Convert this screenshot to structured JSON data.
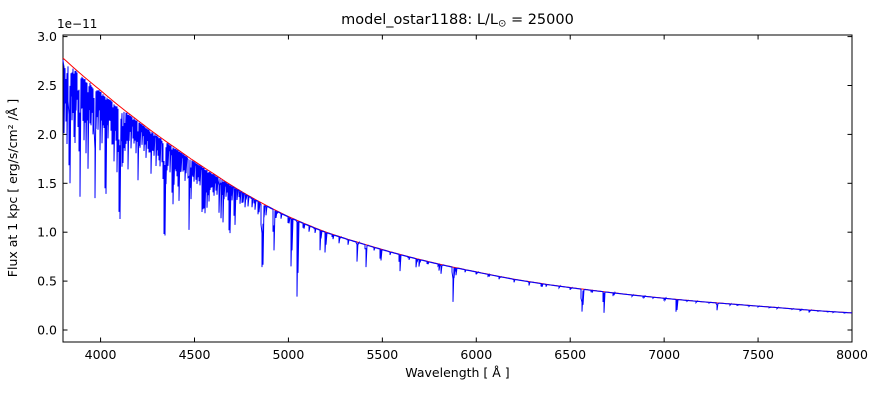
{
  "chart_data": {
    "type": "line",
    "title": "model_ostar1188: L/L⊙ = 25000",
    "title_parts": {
      "prefix": "model_ostar1188: L/L",
      "odot": "⊙",
      "suffix": " = 25000"
    },
    "xlabel": "Wavelength [ Å ]",
    "ylabel": "Flux at 1 kpc [ erg/s/cm² /Å ]",
    "y_offset_label": "1e−11",
    "xlim": [
      3800,
      8000
    ],
    "ylim_1e11": [
      -0.12,
      3.02
    ],
    "x_tick_labels": [
      "4000",
      "4500",
      "5000",
      "5500",
      "6000",
      "6500",
      "7000",
      "7500",
      "8000"
    ],
    "y_tick_labels": [
      "0.0",
      "0.5",
      "1.0",
      "1.5",
      "2.0",
      "2.5",
      "3.0"
    ],
    "grid": false,
    "legend": "none",
    "flux_unit": "1e-11 erg/s/cm2/A",
    "series": [
      {
        "name": "continuum",
        "color": "#ff0000",
        "anchors_wavelength": [
          3800,
          4000,
          4200,
          4400,
          4600,
          4800,
          5000,
          5200,
          5400,
          5600,
          5800,
          6000,
          6200,
          6400,
          6600,
          6800,
          7000,
          7200,
          7400,
          7600,
          7800,
          8000
        ],
        "anchors_flux_1e11": [
          2.78,
          2.45,
          2.14,
          1.86,
          1.6,
          1.36,
          1.16,
          1.0,
          0.88,
          0.77,
          0.675,
          0.595,
          0.52,
          0.46,
          0.41,
          0.365,
          0.325,
          0.29,
          0.26,
          0.23,
          0.2,
          0.175
        ]
      },
      {
        "name": "spectrum",
        "color": "#0000ff",
        "absorption_lines": [
          [
            3805,
            0.28,
            1.5
          ],
          [
            3810,
            0.16,
            1.5
          ],
          [
            3815,
            0.22,
            1.5
          ],
          [
            3819,
            0.32,
            1.5
          ],
          [
            3824,
            0.14,
            1.5
          ],
          [
            3830,
            0.22,
            1.5
          ],
          [
            3835,
            0.45,
            3
          ],
          [
            3843,
            0.12,
            1.5
          ],
          [
            3848,
            0.2,
            1.5
          ],
          [
            3856,
            0.26,
            1.5
          ],
          [
            3862,
            0.28,
            1.5
          ],
          [
            3871,
            0.15,
            1.5
          ],
          [
            3878,
            0.18,
            1.5
          ],
          [
            3882,
            0.22,
            1.5
          ],
          [
            3889,
            0.48,
            3
          ],
          [
            3898,
            0.14,
            1.5
          ],
          [
            3905,
            0.18,
            1.5
          ],
          [
            3912,
            0.25,
            1.5
          ],
          [
            3920,
            0.3,
            1.5
          ],
          [
            3926,
            0.16,
            1.5
          ],
          [
            3933,
            0.35,
            1.8
          ],
          [
            3938,
            0.12,
            1.5
          ],
          [
            3946,
            0.18,
            1.5
          ],
          [
            3952,
            0.12,
            1.5
          ],
          [
            3958,
            0.2,
            1.5
          ],
          [
            3964,
            0.16,
            1.5
          ],
          [
            3970,
            0.46,
            3
          ],
          [
            3979,
            0.12,
            1.5
          ],
          [
            3985,
            0.18,
            1.5
          ],
          [
            3995,
            0.25,
            1.5
          ],
          [
            4003,
            0.12,
            1.5
          ],
          [
            4009,
            0.22,
            1.8
          ],
          [
            4017,
            0.15,
            1.5
          ],
          [
            4026,
            0.42,
            2.5
          ],
          [
            4035,
            0.12,
            1.5
          ],
          [
            4041,
            0.18,
            1.5
          ],
          [
            4048,
            0.1,
            1.5
          ],
          [
            4056,
            0.14,
            1.5
          ],
          [
            4063,
            0.2,
            1.5
          ],
          [
            4069,
            0.26,
            1.8
          ],
          [
            4076,
            0.12,
            1.5
          ],
          [
            4082,
            0.16,
            1.5
          ],
          [
            4089,
            0.3,
            1.8
          ],
          [
            4097,
            0.22,
            1.5
          ],
          [
            4101,
            0.5,
            4
          ],
          [
            4110,
            0.15,
            1.5
          ],
          [
            4116,
            0.26,
            1.8
          ],
          [
            4121,
            0.24,
            1.8
          ],
          [
            4128,
            0.12,
            1.5
          ],
          [
            4132,
            0.18,
            1.5
          ],
          [
            4144,
            0.26,
            1.8
          ],
          [
            4153,
            0.12,
            1.5
          ],
          [
            4163,
            0.15,
            1.5
          ],
          [
            4172,
            0.1,
            1.5
          ],
          [
            4180,
            0.12,
            1.5
          ],
          [
            4187,
            0.16,
            1.5
          ],
          [
            4195,
            0.1,
            1.5
          ],
          [
            4200,
            0.28,
            2
          ],
          [
            4211,
            0.12,
            1.5
          ],
          [
            4222,
            0.1,
            1.5
          ],
          [
            4233,
            0.12,
            1.5
          ],
          [
            4242,
            0.15,
            1.5
          ],
          [
            4250,
            0.1,
            1.5
          ],
          [
            4260,
            0.12,
            1.5
          ],
          [
            4267,
            0.22,
            1.8
          ],
          [
            4276,
            0.1,
            1.5
          ],
          [
            4284,
            0.12,
            1.5
          ],
          [
            4294,
            0.16,
            1.5
          ],
          [
            4303,
            0.1,
            1.5
          ],
          [
            4310,
            0.12,
            1.5
          ],
          [
            4317,
            0.15,
            1.5
          ],
          [
            4326,
            0.12,
            1.5
          ],
          [
            4332,
            0.2,
            1.5
          ],
          [
            4340,
            0.5,
            4
          ],
          [
            4350,
            0.22,
            1.5
          ],
          [
            4360,
            0.12,
            1.5
          ],
          [
            4368,
            0.15,
            1.5
          ],
          [
            4379,
            0.26,
            1.8
          ],
          [
            4387,
            0.32,
            1.8
          ],
          [
            4395,
            0.12,
            1.5
          ],
          [
            4404,
            0.15,
            1.5
          ],
          [
            4415,
            0.28,
            1.8
          ],
          [
            4425,
            0.12,
            1.5
          ],
          [
            4437,
            0.1,
            1.5
          ],
          [
            4447,
            0.15,
            1.5
          ],
          [
            4455,
            0.1,
            1.5
          ],
          [
            4465,
            0.12,
            1.5
          ],
          [
            4471,
            0.42,
            2.5
          ],
          [
            4481,
            0.24,
            1.8
          ],
          [
            4489,
            0.1,
            1.5
          ],
          [
            4498,
            0.12,
            1.5
          ],
          [
            4508,
            0.1,
            1.5
          ],
          [
            4515,
            0.12,
            1.5
          ],
          [
            4522,
            0.1,
            1.5
          ],
          [
            4530,
            0.12,
            1.5
          ],
          [
            4542,
            0.28,
            2
          ],
          [
            4553,
            0.28,
            1.8
          ],
          [
            4560,
            0.15,
            1.5
          ],
          [
            4568,
            0.24,
            1.8
          ],
          [
            4575,
            0.2,
            1.8
          ],
          [
            4583,
            0.12,
            1.5
          ],
          [
            4590,
            0.1,
            1.5
          ],
          [
            4596,
            0.12,
            1.5
          ],
          [
            4605,
            0.14,
            1.5
          ],
          [
            4613,
            0.1,
            1.5
          ],
          [
            4620,
            0.12,
            1.5
          ],
          [
            4630,
            0.24,
            1.8
          ],
          [
            4640,
            0.26,
            1.8
          ],
          [
            4650,
            0.28,
            1.8
          ],
          [
            4658,
            0.12,
            1.5
          ],
          [
            4668,
            0.1,
            1.5
          ],
          [
            4676,
            0.12,
            1.5
          ],
          [
            4686,
            0.34,
            2
          ],
          [
            4697,
            0.1,
            1.5
          ],
          [
            4713,
            0.26,
            1.8
          ],
          [
            4725,
            0.08,
            1.5
          ],
          [
            4740,
            0.1,
            1.5
          ],
          [
            4755,
            0.08,
            1.5
          ],
          [
            4770,
            0.1,
            1.5
          ],
          [
            4785,
            0.08,
            1.5
          ],
          [
            4805,
            0.07,
            1.5
          ],
          [
            4820,
            0.08,
            1.5
          ],
          [
            4840,
            0.1,
            1.5
          ],
          [
            4861,
            0.5,
            5
          ],
          [
            4880,
            0.08,
            1.5
          ],
          [
            4922,
            0.34,
            3
          ],
          [
            4935,
            0.06,
            1.5
          ],
          [
            4960,
            0.05,
            1.5
          ],
          [
            5000,
            0.06,
            1.5
          ],
          [
            5015,
            0.45,
            2
          ],
          [
            5047,
            0.72,
            2
          ],
          [
            5080,
            0.05,
            1.5
          ],
          [
            5110,
            0.06,
            1.5
          ],
          [
            5140,
            0.05,
            1.5
          ],
          [
            5169,
            0.2,
            1.8
          ],
          [
            5196,
            0.22,
            1.8
          ],
          [
            5235,
            0.05,
            1.5
          ],
          [
            5270,
            0.07,
            1.5
          ],
          [
            5316,
            0.06,
            1.5
          ],
          [
            5365,
            0.22,
            1.8
          ],
          [
            5412,
            0.26,
            2
          ],
          [
            5455,
            0.04,
            1.5
          ],
          [
            5490,
            0.14,
            1.8
          ],
          [
            5540,
            0.04,
            1.5
          ],
          [
            5592,
            0.22,
            1.8
          ],
          [
            5640,
            0.04,
            1.5
          ],
          [
            5680,
            0.12,
            1.8
          ],
          [
            5696,
            0.1,
            1.8
          ],
          [
            5740,
            0.04,
            1.5
          ],
          [
            5800,
            0.1,
            1.8
          ],
          [
            5812,
            0.14,
            1.8
          ],
          [
            5876,
            0.55,
            2.5
          ],
          [
            5890,
            0.12,
            1.8
          ],
          [
            5940,
            0.04,
            1.5
          ],
          [
            6000,
            0.04,
            1.5
          ],
          [
            6065,
            0.04,
            1.5
          ],
          [
            6122,
            0.05,
            1.5
          ],
          [
            6200,
            0.06,
            1.8
          ],
          [
            6280,
            0.08,
            1.8
          ],
          [
            6347,
            0.07,
            1.8
          ],
          [
            6371,
            0.05,
            1.8
          ],
          [
            6440,
            0.04,
            1.5
          ],
          [
            6500,
            0.05,
            1.8
          ],
          [
            6563,
            0.55,
            4
          ],
          [
            6614,
            0.06,
            1.8
          ],
          [
            6678,
            0.55,
            2
          ],
          [
            6730,
            0.05,
            1.8
          ],
          [
            6830,
            0.04,
            1.5
          ],
          [
            6890,
            0.04,
            1.5
          ],
          [
            6940,
            0.03,
            1.5
          ],
          [
            7002,
            0.06,
            1.8
          ],
          [
            7065,
            0.4,
            2
          ],
          [
            7120,
            0.03,
            1.5
          ],
          [
            7170,
            0.05,
            1.8
          ],
          [
            7240,
            0.03,
            1.5
          ],
          [
            7281,
            0.28,
            2
          ],
          [
            7350,
            0.05,
            1.8
          ],
          [
            7390,
            0.03,
            1.5
          ],
          [
            7450,
            0.04,
            1.8
          ],
          [
            7500,
            0.04,
            1.5
          ],
          [
            7560,
            0.03,
            1.5
          ],
          [
            7600,
            0.05,
            1.8
          ],
          [
            7680,
            0.03,
            1.5
          ],
          [
            7725,
            0.05,
            1.8
          ],
          [
            7772,
            0.12,
            2
          ],
          [
            7820,
            0.03,
            1.5
          ],
          [
            7870,
            0.03,
            1.5
          ],
          [
            7900,
            0.04,
            1.8
          ],
          [
            7960,
            0.03,
            1.5
          ]
        ]
      }
    ]
  }
}
